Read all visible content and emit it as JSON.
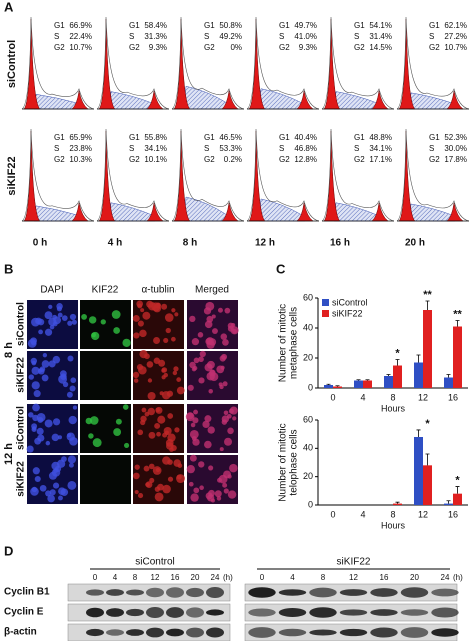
{
  "panel_a": {
    "label": "A",
    "phases": [
      "G1",
      "S",
      "G2"
    ],
    "times": [
      "0 h",
      "4 h",
      "8 h",
      "12 h",
      "16 h",
      "20 h"
    ],
    "rows": [
      {
        "name": "siControl",
        "samples": [
          [
            "66.9%",
            "22.4%",
            "10.7%"
          ],
          [
            "58.4%",
            "31.3%",
            "9.3%"
          ],
          [
            "50.8%",
            "49.2%",
            "0%"
          ],
          [
            "49.7%",
            "41.0%",
            "9.3%"
          ],
          [
            "54.1%",
            "31.4%",
            "14.5%"
          ],
          [
            "62.1%",
            "27.2%",
            "10.7%"
          ]
        ]
      },
      {
        "name": "siKIF22",
        "samples": [
          [
            "65.9%",
            "23.8%",
            "10.3%"
          ],
          [
            "55.8%",
            "34.1%",
            "10.1%"
          ],
          [
            "46.5%",
            "53.3%",
            "0.2%"
          ],
          [
            "40.4%",
            "46.8%",
            "12.8%"
          ],
          [
            "48.8%",
            "34.1%",
            "17.1%"
          ],
          [
            "52.3%",
            "30.0%",
            "17.8%"
          ]
        ]
      }
    ]
  },
  "panel_b": {
    "label": "B",
    "columns": [
      "DAPI",
      "KIF22",
      "α-tublin",
      "Merged"
    ],
    "groups": [
      {
        "time": "8 h",
        "rows": [
          "siControl",
          "siKIF22"
        ]
      },
      {
        "time": "12 h",
        "rows": [
          "siControl",
          "siKIF22"
        ]
      }
    ]
  },
  "panel_c": {
    "label": "C"
  },
  "chart_data": [
    {
      "type": "bar",
      "categories": [
        "0",
        "4",
        "8",
        "12",
        "16"
      ],
      "xlabel": "Hours",
      "ylabel": [
        "Number of mitotic",
        "metaphase cells"
      ],
      "ylim": [
        0,
        60
      ],
      "yticks": [
        0,
        20,
        40,
        60
      ],
      "legend": "upper left",
      "series": [
        {
          "name": "siControl",
          "color": "#2f4fc4",
          "values": [
            2,
            5,
            8,
            17,
            7
          ],
          "errors": [
            0.5,
            0.5,
            1,
            5,
            2
          ]
        },
        {
          "name": "siKIF22",
          "color": "#e02020",
          "values": [
            1,
            5,
            15,
            52,
            41
          ],
          "errors": [
            0.5,
            0.5,
            4,
            6,
            4
          ]
        }
      ],
      "annotations": [
        {
          "category": "8",
          "text": "*"
        },
        {
          "category": "12",
          "text": "**"
        },
        {
          "category": "16",
          "text": "**"
        }
      ]
    },
    {
      "type": "bar",
      "categories": [
        "0",
        "4",
        "8",
        "12",
        "16"
      ],
      "xlabel": "Hours",
      "ylabel": [
        "Number of mitotic",
        "telophase cells"
      ],
      "ylim": [
        0,
        60
      ],
      "yticks": [
        0,
        20,
        40,
        60
      ],
      "legend": false,
      "series": [
        {
          "name": "siControl",
          "color": "#2f4fc4",
          "values": [
            0,
            0,
            0,
            48,
            1
          ],
          "errors": [
            0,
            0,
            0,
            5,
            2
          ]
        },
        {
          "name": "siKIF22",
          "color": "#e02020",
          "values": [
            0,
            0,
            1,
            28,
            8
          ],
          "errors": [
            0,
            0,
            1,
            8,
            5
          ]
        }
      ],
      "annotations": [
        {
          "category": "12",
          "text": "*"
        },
        {
          "category": "16",
          "text": "*"
        }
      ]
    }
  ],
  "panel_d": {
    "label": "D",
    "unit": "(h)",
    "proteins": [
      "Cyclin B1",
      "Cyclin E",
      "β-actin"
    ],
    "groups": [
      {
        "name": "siControl",
        "lanes": [
          "0",
          "4",
          "8",
          "12",
          "16",
          "20",
          "24"
        ]
      },
      {
        "name": "siKIF22",
        "lanes": [
          "0",
          "4",
          "8",
          "12",
          "16",
          "20",
          "24"
        ]
      }
    ]
  }
}
